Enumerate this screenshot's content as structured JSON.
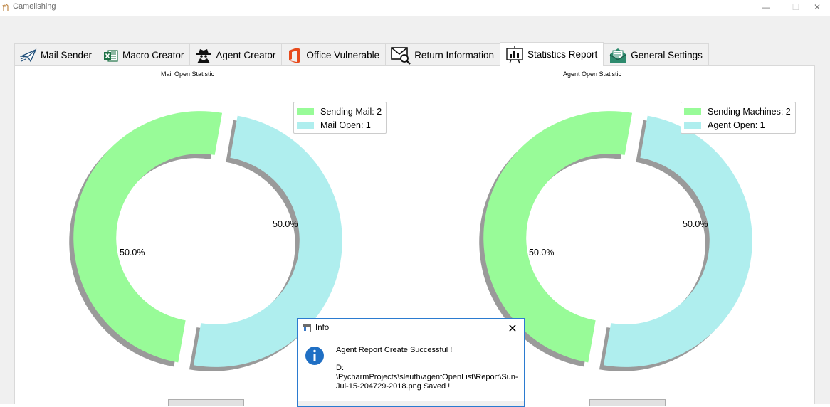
{
  "window": {
    "title": "Camelishing",
    "app_icon": "camel-icon",
    "controls": {
      "minimize": "—",
      "maximize": "☐",
      "close": "✕"
    }
  },
  "tabs": [
    {
      "label": "Mail Sender",
      "icon": "paper-plane-icon",
      "active": false
    },
    {
      "label": "Macro Creator",
      "icon": "excel-icon",
      "active": false
    },
    {
      "label": "Agent Creator",
      "icon": "spy-icon",
      "active": false
    },
    {
      "label": "Office Vulnerable",
      "icon": "office-icon",
      "active": false
    },
    {
      "label": "Return Information",
      "icon": "mail-search-icon",
      "active": false
    },
    {
      "label": "Statistics Report",
      "icon": "report-icon",
      "active": true
    },
    {
      "label": "General Settings",
      "icon": "settings-mail-icon",
      "active": false
    }
  ],
  "chart_data": [
    {
      "type": "pie",
      "title": "Mail Open Statistic",
      "categories": [
        "Sending Mail: 2",
        "Mail Open: 1"
      ],
      "values": [
        50.0,
        50.0
      ],
      "labels": [
        "50.0%",
        "50.0%"
      ],
      "colors": [
        "#98fb98",
        "#afeeee"
      ],
      "donut": true,
      "exploded": true,
      "shadow": true,
      "legend_position": "top-right"
    },
    {
      "type": "pie",
      "title": "Agent Open Statistic",
      "categories": [
        "Sending Machines: 2",
        "Agent Open: 1"
      ],
      "values": [
        50.0,
        50.0
      ],
      "labels": [
        "50.0%",
        "50.0%"
      ],
      "colors": [
        "#98fb98",
        "#afeeee"
      ],
      "donut": true,
      "exploded": true,
      "shadow": true,
      "legend_position": "top-right"
    }
  ],
  "dialog": {
    "title": "Info",
    "close": "✕",
    "message": "Agent Report Create Successful !",
    "path_line1": "D:",
    "path_line2": "\\PycharmProjects\\sleuth\\agentOpenList\\Report\\Sun-Jul-15-204729-2018.png Saved !"
  }
}
